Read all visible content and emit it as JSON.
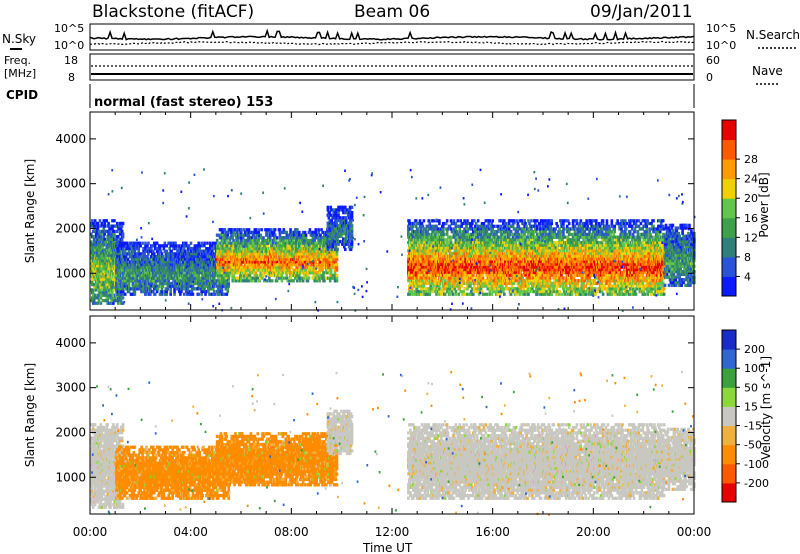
{
  "header": {
    "station": "Blackstone (fitACF)",
    "beam": "Beam 06",
    "date": "09/Jan/2011"
  },
  "noise_panel": {
    "left_label": "N.Sky",
    "right_label": "N.Search",
    "ticks_left": [
      "10^5",
      "10^0"
    ],
    "ticks_right": [
      "10^5",
      "10^0"
    ]
  },
  "freq_panel": {
    "left_label_1": "Freq.",
    "left_label_2": "[MHz]",
    "right_label": "Nave",
    "ticks_left": [
      "18",
      "8"
    ],
    "ticks_right": [
      "60",
      "0"
    ]
  },
  "cpid_panel": {
    "label": "CPID",
    "text": "normal (fast stereo) 153"
  },
  "x_axis": {
    "label": "Time UT",
    "ticks": [
      "00:00",
      "04:00",
      "08:00",
      "12:00",
      "16:00",
      "20:00",
      "00:00"
    ]
  },
  "chart_data": [
    {
      "type": "heatmap",
      "title": "",
      "ylabel": "Slant Range [km]",
      "xlabel": "Time UT",
      "x_range_hours": [
        0,
        24
      ],
      "ylim": [
        180,
        4600
      ],
      "y_ticks": [
        1000,
        2000,
        3000,
        4000
      ],
      "colorbar": {
        "label": "Power [dB]",
        "ticks": [
          "4",
          "8",
          "12",
          "16",
          "20",
          "24",
          "28"
        ],
        "colors": [
          "#0a1bff",
          "#2b53d8",
          "#2f7f7a",
          "#3fa04c",
          "#62c64a",
          "#f0d000",
          "#ff9a00",
          "#ff5a00",
          "#e80000"
        ]
      },
      "echo_regions": [
        {
          "t_start": 0.0,
          "t_end": 1.3,
          "r_low": 300,
          "r_high": 2200,
          "level": 0.55
        },
        {
          "t_start": 1.0,
          "t_end": 5.5,
          "r_low": 500,
          "r_high": 1700,
          "level": 0.35
        },
        {
          "t_start": 5.0,
          "t_end": 9.8,
          "r_low": 800,
          "r_high": 2000,
          "level": 0.8
        },
        {
          "t_start": 9.4,
          "t_end": 10.4,
          "r_low": 1500,
          "r_high": 2500,
          "level": 0.3
        },
        {
          "t_start": 12.6,
          "t_end": 22.8,
          "r_low": 500,
          "r_high": 2200,
          "level": 0.9
        },
        {
          "t_start": 22.8,
          "t_end": 24.0,
          "r_low": 700,
          "r_high": 2100,
          "level": 0.4
        }
      ]
    },
    {
      "type": "heatmap",
      "title": "",
      "ylabel": "Slant Range [km]",
      "xlabel": "Time UT",
      "x_range_hours": [
        0,
        24
      ],
      "ylim": [
        180,
        4600
      ],
      "y_ticks": [
        1000,
        2000,
        3000,
        4000
      ],
      "colorbar": {
        "label": "Velocity [m s^-1]",
        "ticks": [
          "200",
          "100",
          "50",
          "15",
          "-15",
          "-50",
          "-100",
          "-200"
        ],
        "colors": [
          "#1a2cc8",
          "#2f66d0",
          "#3ca03c",
          "#8cd83c",
          "#c8c8c0",
          "#f0b040",
          "#ff8c00",
          "#ff5a00",
          "#e80000"
        ]
      },
      "echo_regions": [
        {
          "t_start": 0.0,
          "t_end": 1.3,
          "r_low": 300,
          "r_high": 2200,
          "velocity_class": "-15"
        },
        {
          "t_start": 1.0,
          "t_end": 5.5,
          "r_low": 500,
          "r_high": 1700,
          "velocity_class": "-100"
        },
        {
          "t_start": 5.0,
          "t_end": 9.8,
          "r_low": 800,
          "r_high": 2000,
          "velocity_class": "-100"
        },
        {
          "t_start": 9.4,
          "t_end": 10.4,
          "r_low": 1500,
          "r_high": 2500,
          "velocity_class": "-15"
        },
        {
          "t_start": 12.6,
          "t_end": 22.8,
          "r_low": 500,
          "r_high": 2200,
          "velocity_class": "-15"
        },
        {
          "t_start": 22.8,
          "t_end": 24.0,
          "r_low": 700,
          "r_high": 2100,
          "velocity_class": "-15"
        }
      ]
    }
  ]
}
